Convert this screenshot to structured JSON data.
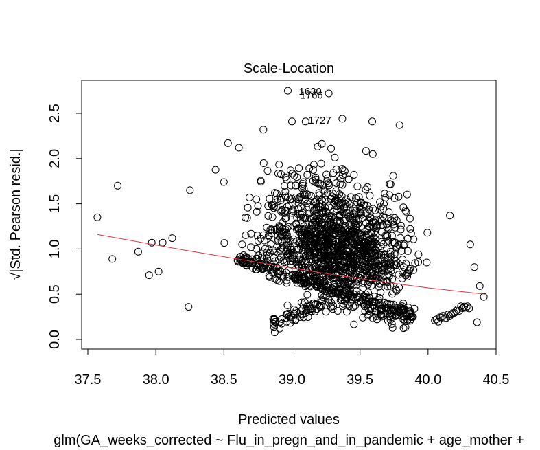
{
  "chart_data": {
    "type": "scatter",
    "title": "Scale-Location",
    "xlabel": "Predicted values",
    "ylabel": "√|Std. Pearson resid.|",
    "subtitle": "glm(GA_weeks_corrected ~ Flu_in_pregn_and_in_pandemic + age_mother +",
    "xlim": [
      37.5,
      40.5
    ],
    "ylim": [
      0.0,
      2.75
    ],
    "x_ticks": [
      37.5,
      38.0,
      38.5,
      39.0,
      39.5,
      40.0,
      40.5
    ],
    "x_tick_labels": [
      "37.5",
      "38.0",
      "38.5",
      "39.0",
      "39.5",
      "40.0",
      "40.5"
    ],
    "y_ticks": [
      0.0,
      0.5,
      1.0,
      1.5,
      2.0,
      2.5
    ],
    "y_tick_labels": [
      "0.0",
      "0.5",
      "1.0",
      "1.5",
      "2.0",
      "2.5"
    ],
    "grid": false,
    "point_style": "open-circle",
    "point_color": "#000000",
    "smooth_color": "#e0353f",
    "smooth_line": {
      "x": [
        37.57,
        38.2,
        38.8,
        39.2,
        39.6,
        40.0,
        40.42
      ],
      "y": [
        1.16,
        0.99,
        0.84,
        0.74,
        0.65,
        0.57,
        0.5
      ]
    },
    "annotations": [
      {
        "label": "1630",
        "x": 39.05,
        "y": 2.75
      },
      {
        "label": "1766",
        "x": 39.06,
        "y": 2.71
      },
      {
        "label": "1727",
        "x": 39.12,
        "y": 2.43
      }
    ],
    "outliers": [
      {
        "x": 38.97,
        "y": 2.75
      },
      {
        "x": 39.27,
        "y": 2.72
      },
      {
        "x": 39.37,
        "y": 2.44
      },
      {
        "x": 39.0,
        "y": 2.41
      },
      {
        "x": 39.1,
        "y": 2.41
      },
      {
        "x": 39.59,
        "y": 2.41
      },
      {
        "x": 39.79,
        "y": 2.37
      },
      {
        "x": 38.79,
        "y": 2.32
      },
      {
        "x": 37.72,
        "y": 1.7
      },
      {
        "x": 37.57,
        "y": 1.35
      },
      {
        "x": 37.68,
        "y": 0.89
      },
      {
        "x": 38.25,
        "y": 1.65
      },
      {
        "x": 38.5,
        "y": 1.74
      },
      {
        "x": 38.53,
        "y": 2.17
      },
      {
        "x": 38.61,
        "y": 2.12
      },
      {
        "x": 40.16,
        "y": 1.37
      },
      {
        "x": 40.31,
        "y": 1.05
      },
      {
        "x": 40.34,
        "y": 0.8
      },
      {
        "x": 40.38,
        "y": 0.59
      },
      {
        "x": 40.41,
        "y": 0.47
      },
      {
        "x": 40.36,
        "y": 0.19
      },
      {
        "x": 38.24,
        "y": 0.36
      },
      {
        "x": 38.12,
        "y": 1.12
      },
      {
        "x": 38.05,
        "y": 1.07
      },
      {
        "x": 37.97,
        "y": 1.07
      },
      {
        "x": 37.95,
        "y": 0.71
      },
      {
        "x": 38.02,
        "y": 0.75
      },
      {
        "x": 37.87,
        "y": 0.97
      }
    ]
  }
}
